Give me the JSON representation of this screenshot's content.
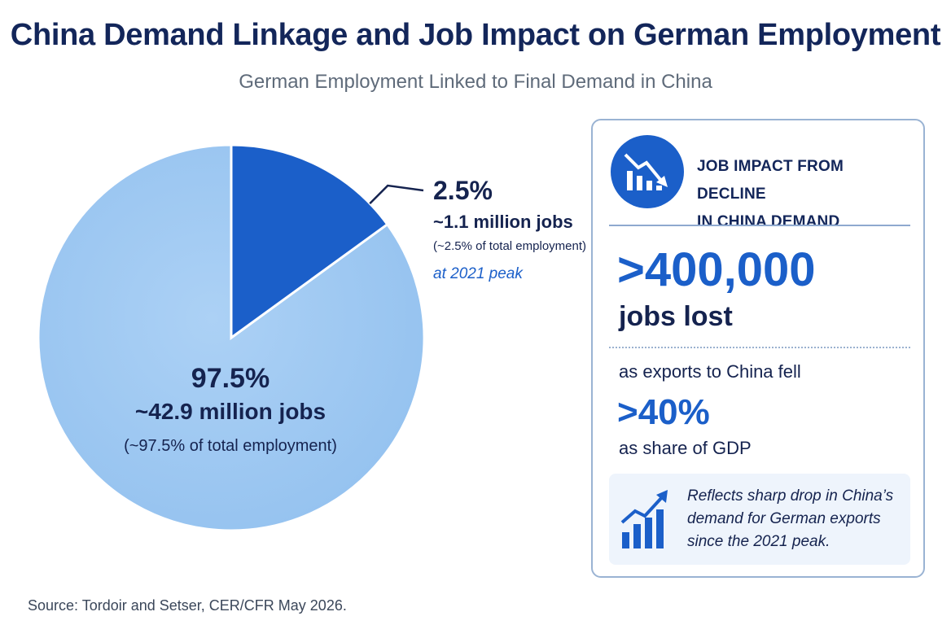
{
  "title": "China Demand Linkage and Job Impact on German Employment",
  "subtitle": "German Employment Linked to Final Demand in China",
  "chart_data": {
    "type": "pie",
    "slices": [
      {
        "label": "97.5%",
        "value": 97.5,
        "jobs_text": "~42.9 million jobs",
        "share_text": "(~97.5% of total employment)",
        "color": "#9cc7f2"
      },
      {
        "label": "2.5%",
        "value": 2.5,
        "jobs_text": "~1.1 million jobs",
        "share_text": "(~2.5% of total employment)",
        "note": "at 2021 peak",
        "color": "#1b5fc9"
      }
    ]
  },
  "panel": {
    "heading_line1": "JOB IMPACT FROM DECLINE",
    "heading_line2": "IN CHINA DEMAND",
    "jobs_number": ">400,000",
    "jobs_label": "jobs lost",
    "exports_text": "as exports to China fell",
    "exports_number": ">40%",
    "exports_label": "as share of GDP",
    "note_line1": "Reflects sharp drop in China’s",
    "note_line2": "demand for German exports",
    "note_line3": "since the 2021 peak.",
    "icon_top": "chart-decline-icon",
    "icon_note": "chart-growth-icon",
    "accent": "#1b5fc9"
  },
  "source": "Source: Tordoir and Setser, CER/CFR May 2026."
}
